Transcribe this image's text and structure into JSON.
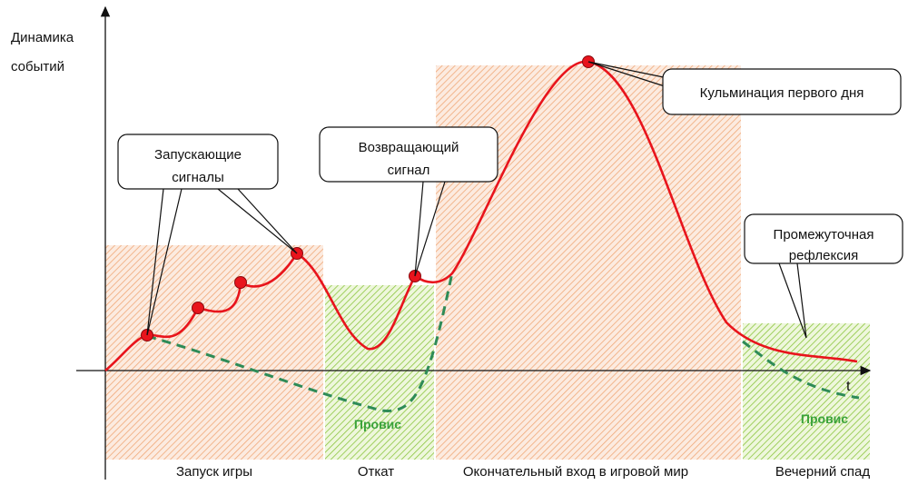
{
  "axes": {
    "y_label_line1": "Динамика",
    "y_label_line2": "событий",
    "x_label": "t"
  },
  "phases": [
    {
      "label": "Запуск игры",
      "color": "orange"
    },
    {
      "label": "Откат",
      "color": "green"
    },
    {
      "label": "Окончательный вход в игровой мир",
      "color": "orange"
    },
    {
      "label": "Вечерний спад",
      "color": "green"
    }
  ],
  "callouts": [
    {
      "line1": "Запускающие",
      "line2": "сигналы"
    },
    {
      "line1": "Возвращающий",
      "line2": "сигнал"
    },
    {
      "line1": "Кульминация первого дня",
      "line2": ""
    },
    {
      "line1": "Промежуточная",
      "line2": "рефлексия"
    }
  ],
  "dip_labels": [
    "Провис",
    "Провис"
  ],
  "colors": {
    "main_curve": "#e8141c",
    "dashed_curve": "#2e8b57",
    "marker": "#e8141c",
    "orange_zone": "#f3b48a",
    "green_zone": "#8cc63f"
  }
}
